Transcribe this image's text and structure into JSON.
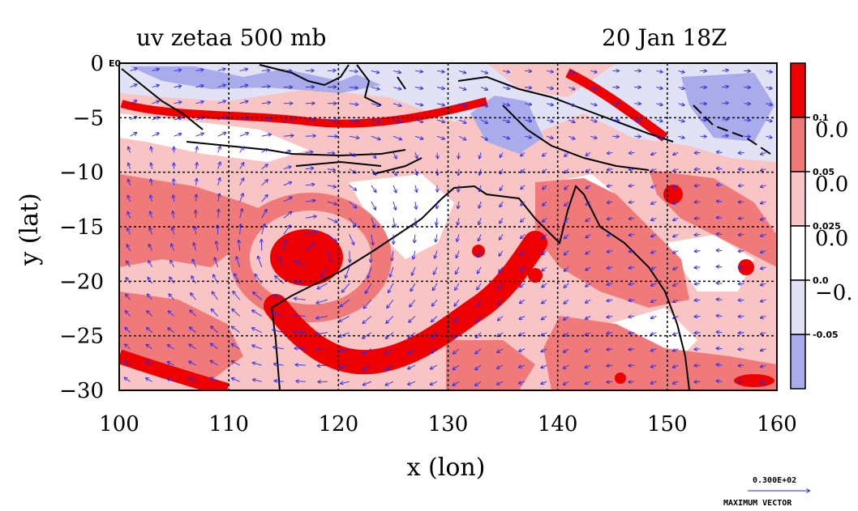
{
  "chart_data": {
    "type": "heatmap",
    "title_left": "uv zetaa 500 mb",
    "title_right": "20 Jan 18Z",
    "xlabel": "x (lon)",
    "ylabel": "y (lat)",
    "xlim": [
      100,
      160
    ],
    "ylim": [
      -30,
      0
    ],
    "x_ticks": [
      "100",
      "110",
      "120",
      "130",
      "140",
      "150",
      "160"
    ],
    "y_ticks": [
      "0",
      "−5",
      "−10",
      "−15",
      "−20",
      "−25",
      "−30"
    ],
    "grid": true,
    "colorbar": {
      "small_labels": [
        "0.1",
        "0.05",
        "0.025",
        "0.0",
        "-0.05"
      ],
      "big_labels": [
        "0.0",
        "0.0",
        "0.0",
        "−0."
      ],
      "colors": [
        "#ee0000",
        "#f07a7a",
        "#f8c4c4",
        "#ffffff",
        "#e2e2f6",
        "#a9abea"
      ]
    },
    "features": {
      "positive_vortex_center": [
        117.5,
        -18
      ],
      "positive_band": [
        [
          110,
          -22
        ],
        [
          116,
          -26
        ],
        [
          120,
          -28
        ],
        [
          126,
          -27
        ],
        [
          132,
          -24
        ],
        [
          136,
          -20
        ],
        [
          140,
          -16
        ]
      ],
      "negative_region_north": [
        [
          104,
          -2
        ],
        [
          120,
          -1
        ],
        [
          134,
          -6
        ],
        [
          157,
          -4
        ]
      ]
    },
    "vector_legend": {
      "value": "0.300E+02",
      "label": "MAXIMUM VECTOR"
    },
    "corner_label": "E0"
  }
}
